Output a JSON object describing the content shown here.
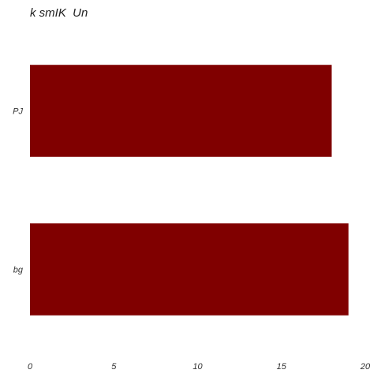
{
  "chart_data": {
    "type": "bar",
    "orientation": "horizontal",
    "title": "k smIK  Un",
    "xlabel": "",
    "ylabel": "",
    "categories": [
      "PJ",
      "bg"
    ],
    "values": [
      18,
      19
    ],
    "xlim": [
      0,
      20
    ],
    "xticks": [
      0,
      5,
      10,
      15,
      20
    ],
    "grid": false,
    "legend": "none",
    "bar_color": "#800000"
  }
}
